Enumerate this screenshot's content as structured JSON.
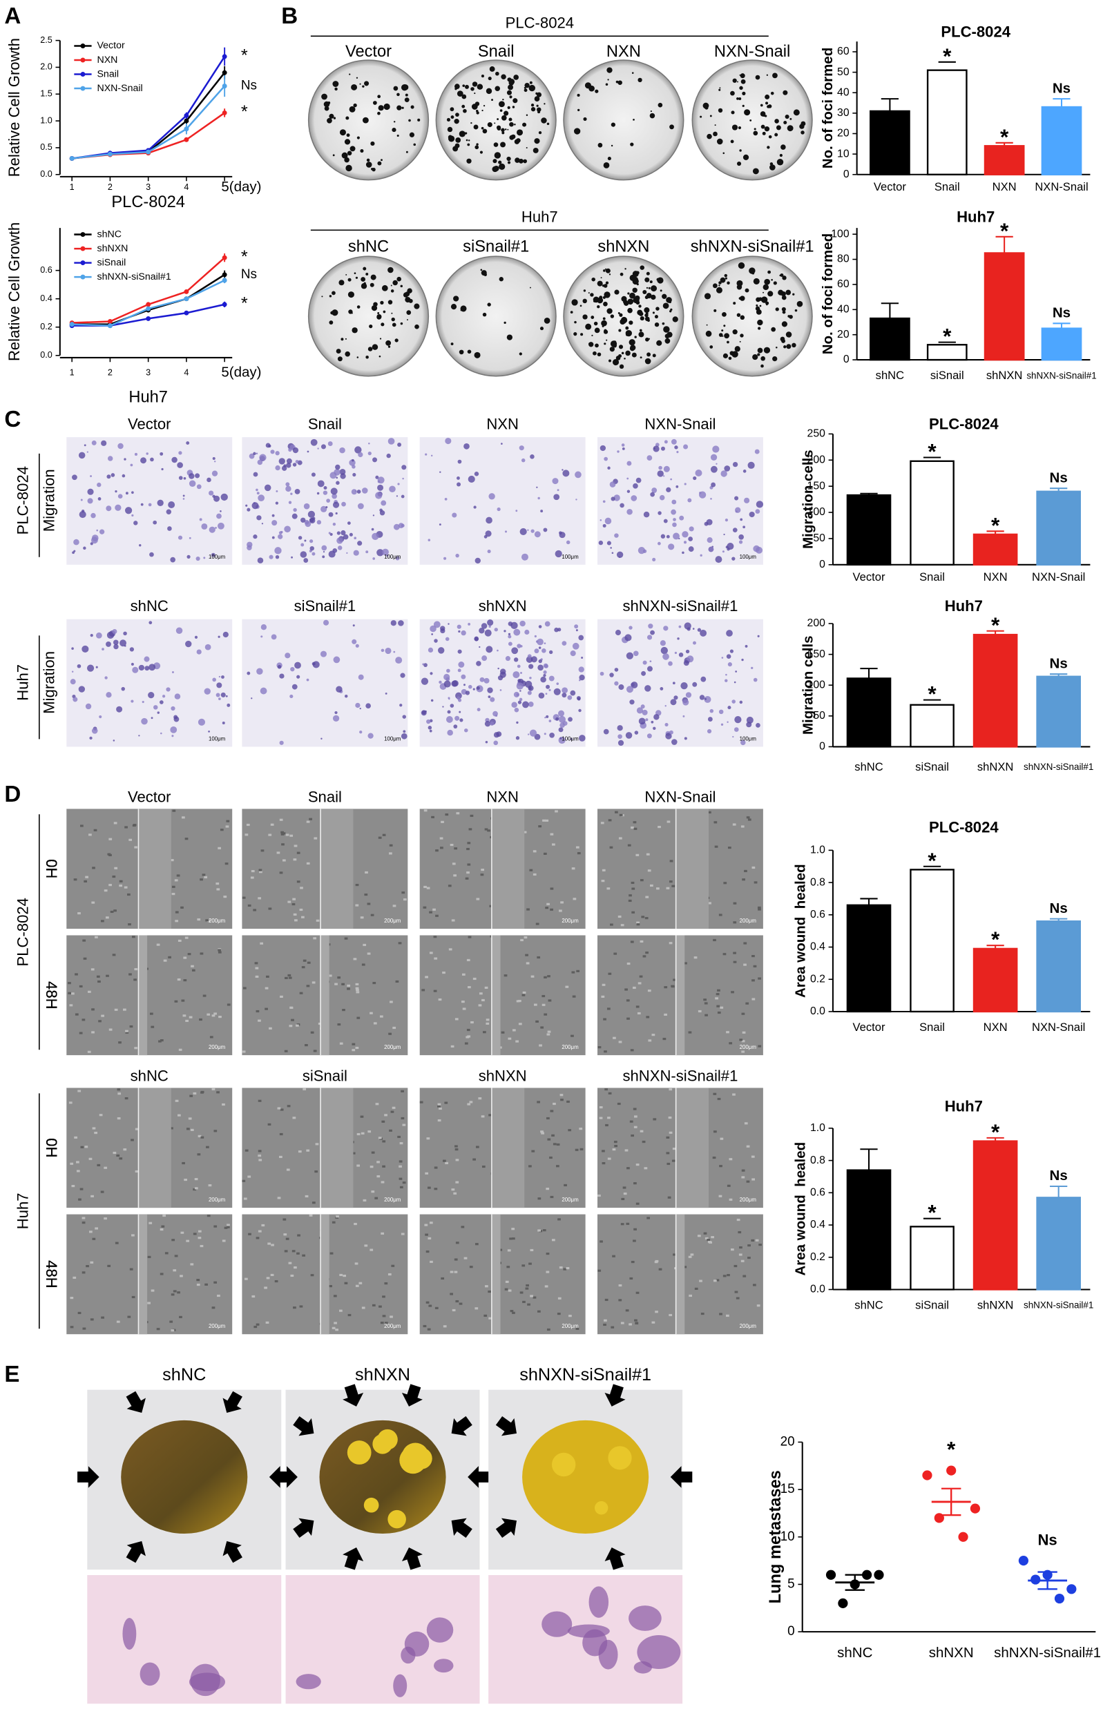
{
  "figure": {
    "panel_letters": [
      "A",
      "B",
      "C",
      "D",
      "E"
    ],
    "B": {
      "groups": [
        {
          "title": "PLC-8024",
          "labels": [
            "Vector",
            "Snail",
            "NXN",
            "NXN-Snail"
          ]
        },
        {
          "title": "Huh7",
          "labels": [
            "shNC",
            "siSnail#1",
            "shNXN",
            "shNXN-siSnail#1"
          ]
        }
      ]
    },
    "C": {
      "groups": [
        {
          "cell_line": "PLC-8024",
          "assay": "Migration",
          "labels": [
            "Vector",
            "Snail",
            "NXN",
            "NXN-Snail"
          ]
        },
        {
          "cell_line": "Huh7",
          "assay": "Migration",
          "labels": [
            "shNC",
            "siSnail#1",
            "shNXN",
            "shNXN-siSnail#1"
          ]
        }
      ],
      "scale_bar": "100μm"
    },
    "D": {
      "groups": [
        {
          "cell_line": "PLC-8024",
          "rows": [
            "0H",
            "48H"
          ],
          "labels": [
            "Vector",
            "Snail",
            "NXN",
            "NXN-Snail"
          ]
        },
        {
          "cell_line": "Huh7",
          "rows": [
            "0H",
            "48H"
          ],
          "labels": [
            "shNC",
            "siSnail",
            "shNXN",
            "shNXN-siSnail#1"
          ]
        }
      ],
      "scale_bar": "200μm"
    },
    "E": {
      "labels": [
        "shNC",
        "shNXN",
        "shNXN-siSnail#1"
      ]
    }
  },
  "chart_data": [
    {
      "type": "line",
      "xlabel": "PLC-8024",
      "ylabel": "Relative Cell Growth",
      "x": [
        1,
        2,
        3,
        4,
        5
      ],
      "xlim": [
        0.8,
        5.2
      ],
      "xticks": [
        1,
        2,
        3,
        4,
        {
          "value": 5,
          "label": "5(day)"
        }
      ],
      "ylim": [
        0,
        2.5
      ],
      "yticks": [
        {
          "value": 0,
          "label": "0.0"
        },
        0.5,
        {
          "value": 1,
          "label": "1.0"
        },
        1.5,
        {
          "value": 2,
          "label": "2.0"
        },
        2.5
      ],
      "legend": "upper left",
      "series": [
        {
          "name": "Vector",
          "color": "#000000",
          "values": [
            0.3,
            0.38,
            0.42,
            1.0,
            1.9
          ],
          "errors": [
            0.02,
            0.02,
            0.03,
            0.06,
            0.12
          ]
        },
        {
          "name": "NXN",
          "color": "#ee2222",
          "values": [
            0.3,
            0.37,
            0.4,
            0.65,
            1.15
          ],
          "errors": [
            0.02,
            0.02,
            0.02,
            0.04,
            0.08
          ],
          "end_label": "*"
        },
        {
          "name": "Snail",
          "color": "#1b1bd1",
          "values": [
            0.3,
            0.4,
            0.45,
            1.1,
            2.2
          ],
          "errors": [
            0.02,
            0.02,
            0.03,
            0.06,
            0.17
          ],
          "end_label": "*"
        },
        {
          "name": "NXN-Snail",
          "color": "#4fa3e8",
          "values": [
            0.3,
            0.38,
            0.42,
            0.85,
            1.65
          ],
          "errors": [
            0.02,
            0.02,
            0.03,
            0.1,
            0.2
          ],
          "end_label": "Ns"
        }
      ]
    },
    {
      "type": "line",
      "xlabel": "Huh7",
      "ylabel": "Relative Cell Growth",
      "x": [
        1,
        2,
        3,
        4,
        5
      ],
      "xlim": [
        0.8,
        5.2
      ],
      "xticks": [
        1,
        2,
        3,
        4,
        {
          "value": 5,
          "label": "5(day)"
        }
      ],
      "ylim": [
        0,
        0.9
      ],
      "yticks": [
        {
          "value": 0,
          "label": "0.0"
        },
        0.2,
        0.4,
        0.6
      ],
      "legend": "upper left",
      "series": [
        {
          "name": "shNC",
          "color": "#000000",
          "values": [
            0.22,
            0.22,
            0.32,
            0.4,
            0.57
          ],
          "errors": [
            0.01,
            0.01,
            0.01,
            0.01,
            0.03
          ],
          "end_label": "Ns"
        },
        {
          "name": "shNXN",
          "color": "#ee2222",
          "values": [
            0.23,
            0.24,
            0.36,
            0.45,
            0.69
          ],
          "errors": [
            0.01,
            0.01,
            0.01,
            0.01,
            0.03
          ],
          "end_label": "*"
        },
        {
          "name": "siSnail",
          "color": "#1b1bd1",
          "values": [
            0.21,
            0.21,
            0.26,
            0.3,
            0.36
          ],
          "errors": [
            0.01,
            0.01,
            0.01,
            0.01,
            0.02
          ],
          "end_label": "*"
        },
        {
          "name": "shNXN-siSnail#1",
          "color": "#4fa3e8",
          "values": [
            0.22,
            0.21,
            0.33,
            0.4,
            0.53
          ],
          "errors": [
            0.01,
            0.01,
            0.01,
            0.01,
            0.02
          ]
        }
      ]
    },
    {
      "type": "bar",
      "title": "PLC-8024",
      "ylabel": "No. of foci formed",
      "categories": [
        "Vector",
        "Snail",
        "NXN",
        "NXN-Snail"
      ],
      "values": [
        31,
        51,
        14,
        33
      ],
      "errors": [
        6,
        4,
        1.5,
        4
      ],
      "colors": [
        "#000000",
        "#ffffff",
        "#e8231f",
        "#4da6ff"
      ],
      "significance": [
        null,
        "*",
        "*",
        "Ns"
      ],
      "ylim": [
        0,
        65
      ],
      "yticks": [
        0,
        10,
        20,
        30,
        40,
        50,
        60
      ]
    },
    {
      "type": "bar",
      "title": "Huh7",
      "ylabel": "No. of foci formed",
      "categories": [
        "shNC",
        "siSnail",
        "shNXN",
        "shNXN-siSnail#1"
      ],
      "values": [
        33,
        12,
        85,
        25
      ],
      "errors": [
        12,
        2,
        13,
        4
      ],
      "colors": [
        "#000000",
        "#ffffff",
        "#e8231f",
        "#4da6ff"
      ],
      "significance": [
        null,
        "*",
        "*",
        "Ns"
      ],
      "ylim": [
        0,
        105
      ],
      "yticks": [
        0,
        20,
        40,
        60,
        80,
        100
      ]
    },
    {
      "type": "bar",
      "title": "PLC-8024",
      "ylabel": "Migration cells",
      "categories": [
        "Vector",
        "Snail",
        "NXN",
        "NXN-Snail"
      ],
      "values": [
        133,
        198,
        58,
        140
      ],
      "errors": [
        3,
        7,
        6,
        6
      ],
      "colors": [
        "#000000",
        "#ffffff",
        "#e8231f",
        "#5b9bd5"
      ],
      "significance": [
        null,
        "*",
        "*",
        "Ns"
      ],
      "ylim": [
        0,
        250
      ],
      "yticks": [
        0,
        50,
        100,
        150,
        200,
        250
      ]
    },
    {
      "type": "bar",
      "title": "Huh7",
      "ylabel": "Migration cells",
      "categories": [
        "shNC",
        "siSnail",
        "shNXN",
        "shNXN-siSnail#1"
      ],
      "values": [
        111,
        68,
        182,
        114
      ],
      "errors": [
        16,
        8,
        6,
        4
      ],
      "colors": [
        "#000000",
        "#ffffff",
        "#e8231f",
        "#5b9bd5"
      ],
      "significance": [
        null,
        "*",
        "*",
        "Ns"
      ],
      "ylim": [
        0,
        200
      ],
      "yticks": [
        0,
        50,
        100,
        150,
        200
      ]
    },
    {
      "type": "bar",
      "title": "PLC-8024",
      "ylabel": "Area wound  healed",
      "categories": [
        "Vector",
        "Snail",
        "NXN",
        "NXN-Snail"
      ],
      "values": [
        0.66,
        0.88,
        0.39,
        0.56
      ],
      "errors": [
        0.04,
        0.02,
        0.02,
        0.015
      ],
      "colors": [
        "#000000",
        "#ffffff",
        "#e8231f",
        "#5b9bd5"
      ],
      "significance": [
        null,
        "*",
        "*",
        "Ns"
      ],
      "ylim": [
        0,
        1
      ],
      "yticks": [
        {
          "value": 0,
          "label": "0.0"
        },
        0.2,
        0.4,
        0.6,
        0.8,
        {
          "value": 1,
          "label": "1.0"
        }
      ]
    },
    {
      "type": "bar",
      "title": "Huh7",
      "ylabel": "Area wound  healed",
      "categories": [
        "shNC",
        "siSnail",
        "shNXN",
        "shNXN-siSnail#1"
      ],
      "values": [
        0.74,
        0.39,
        0.92,
        0.57
      ],
      "errors": [
        0.13,
        0.05,
        0.02,
        0.07
      ],
      "colors": [
        "#000000",
        "#ffffff",
        "#e8231f",
        "#5b9bd5"
      ],
      "significance": [
        null,
        "*",
        "*",
        "Ns"
      ],
      "ylim": [
        0,
        1
      ],
      "yticks": [
        {
          "value": 0,
          "label": "0.0"
        },
        0.2,
        0.4,
        0.6,
        0.8,
        {
          "value": 1,
          "label": "1.0"
        }
      ]
    },
    {
      "type": "dot",
      "ylabel": "Lung metastases",
      "categories": [
        "shNC",
        "shNXN",
        "shNXN-siSnail#1"
      ],
      "points": [
        [
          6,
          3,
          5,
          6,
          6
        ],
        [
          16.5,
          12,
          17,
          10,
          13
        ],
        [
          7.5,
          5.5,
          6,
          3.5,
          4.5
        ]
      ],
      "means": [
        5.2,
        13.7,
        5.4
      ],
      "errors": [
        0.8,
        1.4,
        0.9
      ],
      "colors": [
        "#000000",
        "#ee2222",
        "#1d3fe0"
      ],
      "significance": [
        null,
        "*",
        "Ns"
      ],
      "ylim": [
        0,
        20
      ],
      "yticks": [
        0,
        5,
        10,
        15,
        20
      ]
    }
  ]
}
